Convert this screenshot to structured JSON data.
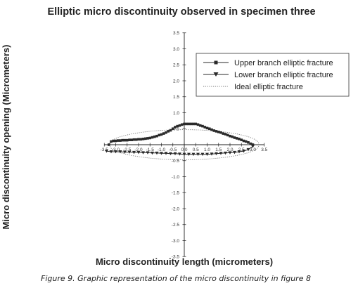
{
  "chart_data": {
    "type": "line",
    "title": "Elliptic micro discontinuity observed in specimen three",
    "xlabel": "Micro discontinuity length (micrometers)",
    "ylabel": "Micro discontinuity opening (Micrometers)",
    "xlim": [
      -3.5,
      3.5
    ],
    "ylim": [
      -3.5,
      3.5
    ],
    "xticks": [
      "-3.5",
      "-3.0",
      "-2.5",
      "-2.0",
      "-1.5",
      "-1.0",
      "-0.5",
      "0.0",
      "0.5",
      "1.0",
      "1.5",
      "2.0",
      "2.5",
      "3.0",
      "3.5"
    ],
    "yticks": [
      "-3.5",
      "-3.0",
      "-2.5",
      "-2.0",
      "-1.5",
      "-1.0",
      "-0.5",
      "0.0",
      "0.5",
      "1.0",
      "1.5",
      "2.0",
      "2.5",
      "3.0",
      "3.5"
    ],
    "legend_position": "top-right",
    "series": [
      {
        "name": "Upper branch elliptic fracture",
        "marker": "square",
        "x": [
          -3.3,
          -3.2,
          -3.1,
          -3.0,
          -2.9,
          -2.8,
          -2.7,
          -2.6,
          -2.5,
          -2.4,
          -2.3,
          -2.2,
          -2.1,
          -2.0,
          -1.9,
          -1.8,
          -1.7,
          -1.6,
          -1.5,
          -1.4,
          -1.3,
          -1.2,
          -1.1,
          -1.0,
          -0.9,
          -0.8,
          -0.7,
          -0.6,
          -0.5,
          -0.4,
          -0.3,
          -0.2,
          -0.1,
          0.0,
          0.1,
          0.2,
          0.3,
          0.4,
          0.5,
          0.6,
          0.7,
          0.8,
          0.9,
          1.0,
          1.1,
          1.2,
          1.3,
          1.4,
          1.5,
          1.6,
          1.7,
          1.8,
          1.9,
          2.0,
          2.1,
          2.2,
          2.3,
          2.4,
          2.5,
          2.6,
          2.7,
          2.8,
          2.9,
          3.0
        ],
        "y": [
          0.0,
          0.1,
          0.12,
          0.12,
          0.13,
          0.13,
          0.14,
          0.14,
          0.14,
          0.15,
          0.15,
          0.16,
          0.16,
          0.17,
          0.17,
          0.18,
          0.19,
          0.2,
          0.21,
          0.23,
          0.25,
          0.27,
          0.3,
          0.32,
          0.35,
          0.38,
          0.42,
          0.45,
          0.5,
          0.55,
          0.58,
          0.6,
          0.63,
          0.65,
          0.65,
          0.65,
          0.65,
          0.65,
          0.65,
          0.63,
          0.6,
          0.58,
          0.55,
          0.52,
          0.5,
          0.47,
          0.44,
          0.42,
          0.4,
          0.38,
          0.35,
          0.33,
          0.3,
          0.27,
          0.25,
          0.22,
          0.2,
          0.18,
          0.15,
          0.12,
          0.1,
          0.07,
          0.03,
          0.0
        ]
      },
      {
        "name": "Lower branch elliptic fracture",
        "marker": "triangle-down",
        "x": [
          -3.4,
          -3.2,
          -3.0,
          -2.8,
          -2.6,
          -2.4,
          -2.2,
          -2.0,
          -1.8,
          -1.6,
          -1.4,
          -1.2,
          -1.0,
          -0.8,
          -0.6,
          -0.4,
          -0.2,
          0.0,
          0.2,
          0.4,
          0.6,
          0.8,
          1.0,
          1.2,
          1.4,
          1.6,
          1.8,
          2.0,
          2.2,
          2.4,
          2.6,
          2.8,
          3.0
        ],
        "y": [
          -0.2,
          -0.22,
          -0.22,
          -0.22,
          -0.23,
          -0.23,
          -0.24,
          -0.24,
          -0.25,
          -0.25,
          -0.26,
          -0.26,
          -0.27,
          -0.27,
          -0.28,
          -0.28,
          -0.29,
          -0.3,
          -0.3,
          -0.3,
          -0.3,
          -0.3,
          -0.3,
          -0.29,
          -0.28,
          -0.27,
          -0.26,
          -0.25,
          -0.24,
          -0.22,
          -0.2,
          -0.15,
          -0.05
        ]
      },
      {
        "name": "Ideal elliptic fracture",
        "style": "dotted",
        "a": 3.3,
        "b_upper": 0.47,
        "b_lower": 0.47
      }
    ]
  },
  "caption": "Figure 9. Graphic representation of the micro discontinuity in figure 8",
  "colors": {
    "line": "#2a2a2a",
    "dotted": "#777777"
  }
}
